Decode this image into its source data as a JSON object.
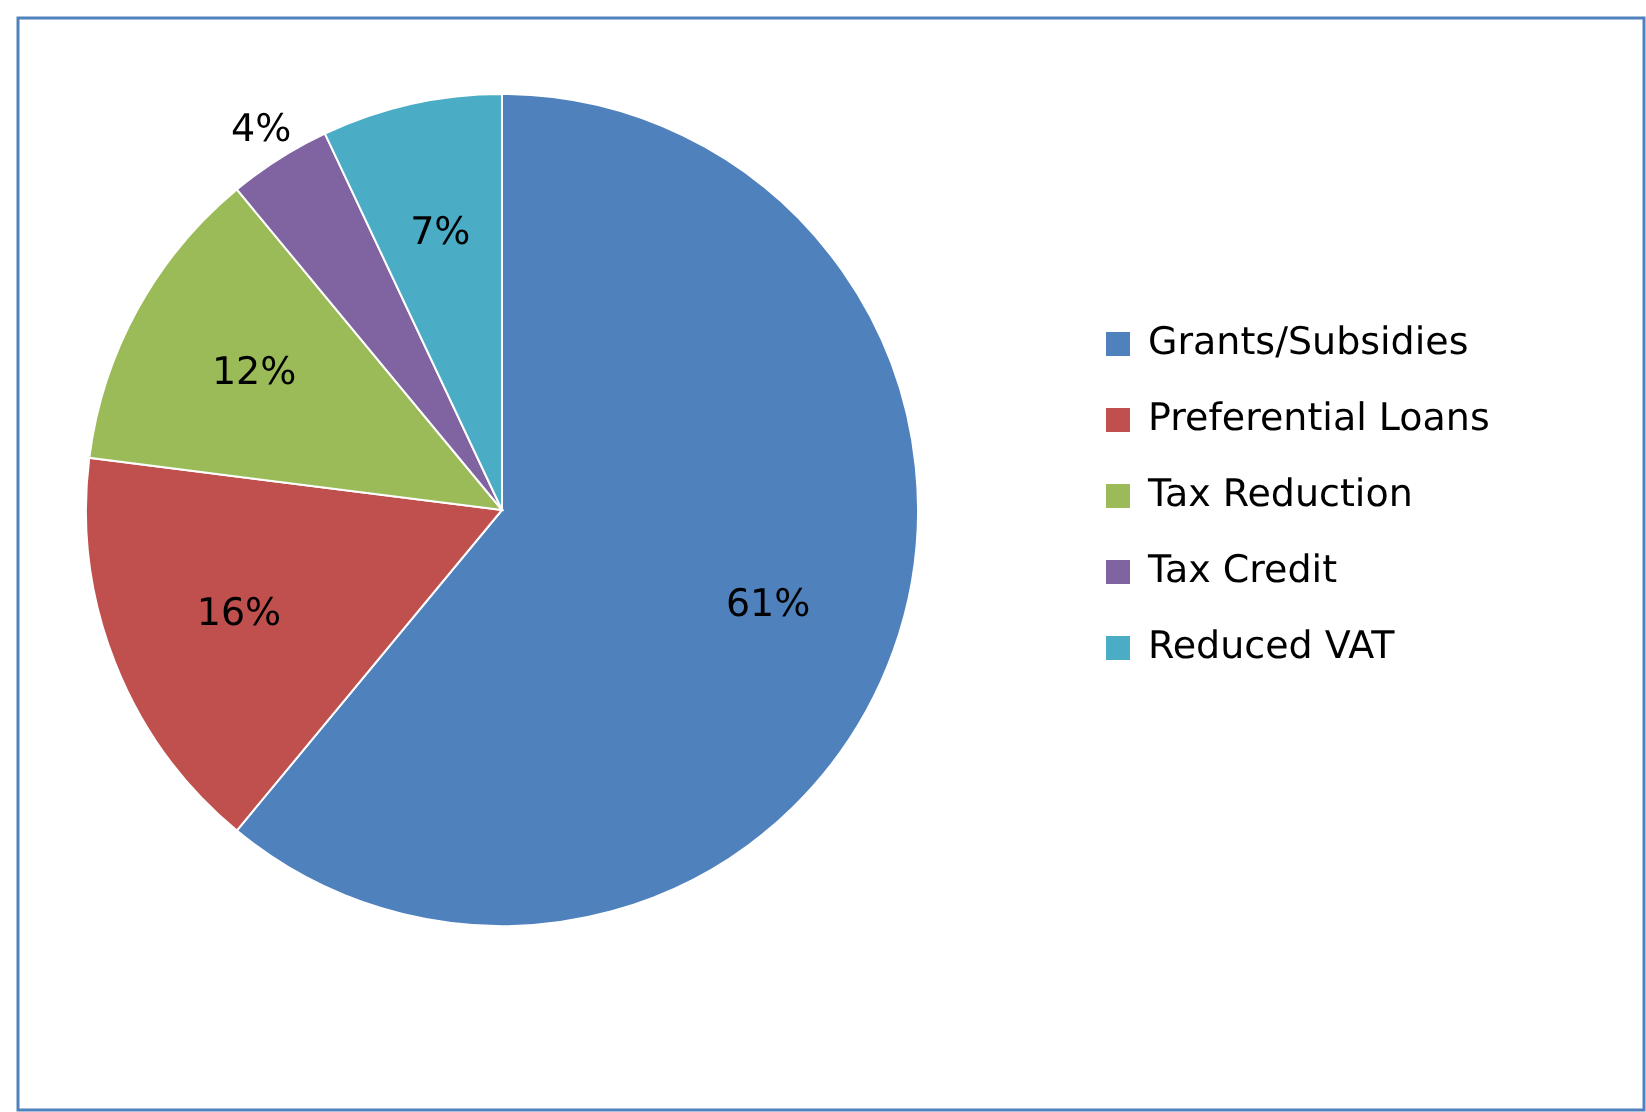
{
  "chart_data": {
    "type": "pie",
    "categories": [
      "Grants/Subsidies",
      "Preferential Loans",
      "Tax Reduction",
      "Tax Credit",
      "Reduced VAT"
    ],
    "values": [
      61,
      16,
      12,
      4,
      7
    ],
    "colors": [
      "#4f81bd",
      "#c0504d",
      "#9bbb59",
      "#8064a2",
      "#4bacc6"
    ],
    "value_labels": [
      "61%",
      "16%",
      "12%",
      "4%",
      "7%"
    ],
    "legend": "right"
  }
}
